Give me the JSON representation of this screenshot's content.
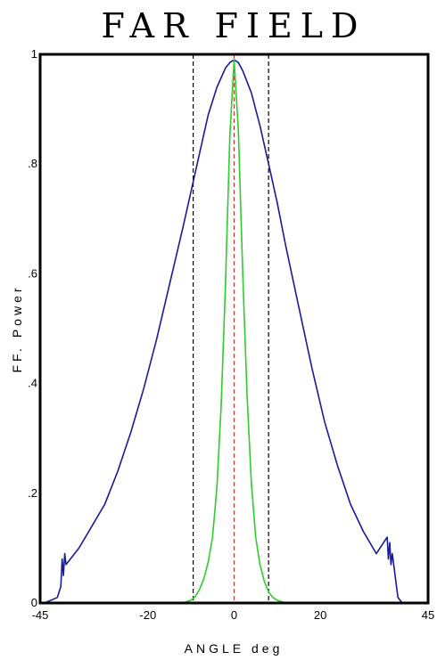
{
  "chart_data": {
    "type": "line",
    "title": "FAR FIELD",
    "xlabel": "ANGLE deg",
    "ylabel": "FF. Power",
    "xlim": [
      -45,
      45
    ],
    "ylim": [
      0,
      1
    ],
    "x_ticks": [
      "-45",
      "-20",
      "0",
      "20",
      "45"
    ],
    "y_ticks": [
      "0",
      ".2",
      ".4",
      ".6",
      ".8",
      "1"
    ],
    "grid": false,
    "legend": "none",
    "series": [
      {
        "color": "#1a1a9c",
        "x": [
          -44,
          -41,
          -40.2,
          -39.9,
          -39.6,
          -39.3,
          -39,
          -36,
          -33,
          -30,
          -27,
          -24,
          -21,
          -18,
          -15,
          -12,
          -10,
          -8,
          -6,
          -4,
          -2,
          -1,
          0,
          1,
          2,
          4,
          6,
          8,
          10,
          12,
          15,
          18,
          21,
          24,
          27,
          30,
          33,
          35.5,
          35.8,
          36.1,
          36.4,
          36.7,
          37.5,
          38,
          39
        ],
        "y": [
          0,
          0.01,
          0.03,
          0.08,
          0.05,
          0.09,
          0.07,
          0.1,
          0.14,
          0.18,
          0.24,
          0.31,
          0.39,
          0.48,
          0.58,
          0.68,
          0.75,
          0.82,
          0.89,
          0.94,
          0.975,
          0.985,
          0.99,
          0.985,
          0.97,
          0.93,
          0.87,
          0.8,
          0.73,
          0.65,
          0.54,
          0.43,
          0.33,
          0.25,
          0.18,
          0.13,
          0.09,
          0.12,
          0.08,
          0.11,
          0.07,
          0.09,
          0.04,
          0.01,
          0
        ]
      },
      {
        "color": "#2ecc2e",
        "x": [
          -16,
          -12,
          -10,
          -9,
          -8,
          -7,
          -6,
          -5,
          -4,
          -3,
          -2,
          -1,
          0,
          1,
          2,
          3,
          4,
          5,
          6,
          7,
          8,
          9,
          10,
          12,
          18
        ],
        "y": [
          0,
          0,
          0.005,
          0.012,
          0.025,
          0.045,
          0.075,
          0.12,
          0.21,
          0.36,
          0.58,
          0.85,
          0.99,
          0.86,
          0.6,
          0.38,
          0.22,
          0.12,
          0.07,
          0.04,
          0.02,
          0.01,
          0.005,
          0,
          0
        ]
      }
    ],
    "vlines": [
      {
        "x": -9.5,
        "color": "#000000",
        "style": "dashed"
      },
      {
        "x": 0,
        "color": "#e03030",
        "style": "dashed"
      },
      {
        "x": 8,
        "color": "#000000",
        "style": "dashed"
      }
    ]
  }
}
